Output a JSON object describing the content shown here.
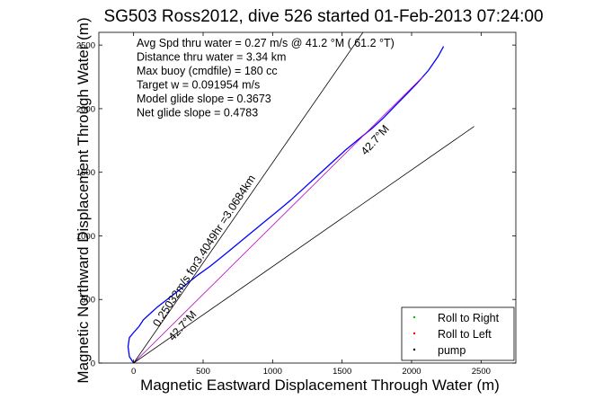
{
  "chart_data": {
    "type": "line",
    "title": "SG503 Ross2012, dive 526 started 01-Feb-2013 07:24:00",
    "xlabel": "Magnetic Eastward Displacement Through Water (m)",
    "ylabel": "Magnetic Northward Displacement Through Water (m)",
    "xlim": [
      -250,
      2750
    ],
    "ylim": [
      0,
      2600
    ],
    "x_ticks": [
      0,
      500,
      1000,
      1500,
      2000,
      2500
    ],
    "y_ticks": [
      0,
      500,
      1000,
      1500,
      2000,
      2500
    ],
    "grid": false,
    "legend_position": "bottom-right",
    "info_lines": [
      "Avg Spd thru water =  0.27 m/s @  41.2   °M ( 61.2 °T)",
      "Distance thru water =  3.34 km",
      "Max buoy (cmdfile) = 180 cc",
      "Target w = 0.091954 m/s",
      "Model glide slope = 0.3673",
      "Net glide slope = 0.4783"
    ],
    "annotations": [
      {
        "text": "0.25032m/s for3.4049hr =3.0684km",
        "x": 180,
        "y": 280,
        "angle_deg": -57
      },
      {
        "text": "42.7°M",
        "x": 1670,
        "y": 1630,
        "angle_deg": -48
      },
      {
        "text": "42.7°M",
        "x": 285,
        "y": 170,
        "angle_deg": -48
      }
    ],
    "series": [
      {
        "name": "",
        "color": "#0000ff",
        "x": [
          0,
          -30,
          -40,
          -30,
          0,
          40,
          70,
          130,
          170,
          230,
          300,
          380,
          460,
          550,
          640,
          730,
          830,
          930,
          1030,
          1130,
          1230,
          1330,
          1430,
          1530,
          1630,
          1720,
          1800,
          1880,
          1960,
          2040,
          2120,
          2190,
          2230
        ],
        "y": [
          0,
          50,
          130,
          200,
          240,
          290,
          340,
          400,
          440,
          490,
          550,
          620,
          690,
          760,
          840,
          920,
          1010,
          1100,
          1190,
          1280,
          1380,
          1480,
          1580,
          1680,
          1770,
          1850,
          1930,
          2020,
          2110,
          2200,
          2300,
          2410,
          2490
        ]
      },
      {
        "name": "",
        "color": "#c000c0",
        "x": [
          0,
          2080
        ],
        "y": [
          0,
          2250
        ]
      },
      {
        "name": "",
        "color": "#000000",
        "x": [
          0,
          1650
        ],
        "y": [
          0,
          2600
        ]
      },
      {
        "name": "",
        "color": "#000000",
        "x": [
          0,
          2450
        ],
        "y": [
          0,
          1860
        ]
      }
    ],
    "legend": [
      {
        "label": "Roll to Right",
        "color": "#00bb00"
      },
      {
        "label": "Roll to Left",
        "color": "#ff0000"
      },
      {
        "label": "pump",
        "color": "#000000"
      }
    ]
  }
}
